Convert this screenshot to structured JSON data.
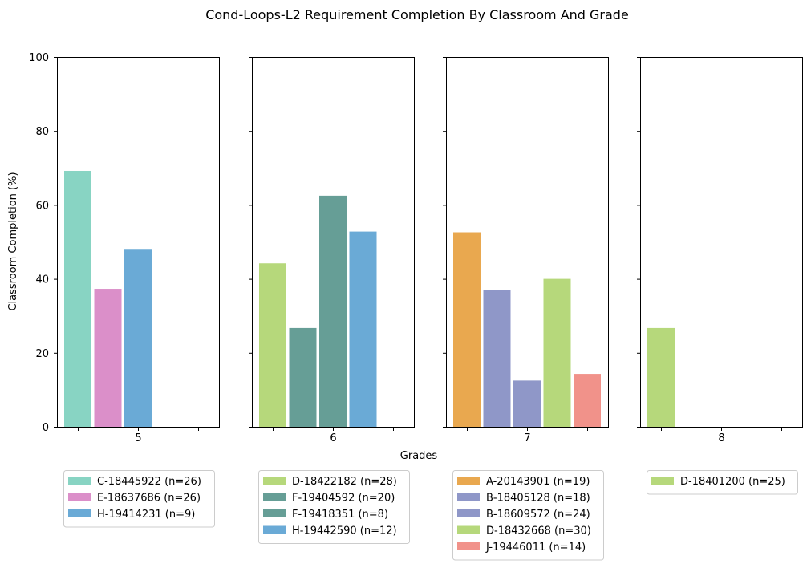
{
  "chart_data": {
    "type": "bar",
    "title": "Cond-Loops-L2 Requirement Completion By Classroom And Grade",
    "xlabel": "Grades",
    "ylabel": "Classroom Completion (%)",
    "ylim": [
      0,
      100
    ],
    "yticks": [
      "0",
      "20",
      "40",
      "60",
      "80",
      "100"
    ],
    "grid": false,
    "shared_y": true,
    "panels": [
      {
        "grade": "5",
        "bars": [
          {
            "label": "C-18445922 (n=26)",
            "value": 69.2,
            "color": "#88d4c3"
          },
          {
            "label": "E-18637686 (n=26)",
            "value": 37.3,
            "color": "#db8fc9"
          },
          {
            "label": "H-19414231 (n=9)",
            "value": 48.1,
            "color": "#6aaad6"
          }
        ]
      },
      {
        "grade": "6",
        "bars": [
          {
            "label": "D-18422182 (n=28)",
            "value": 44.2,
            "color": "#b6d87b"
          },
          {
            "label": "F-19404592 (n=20)",
            "value": 26.7,
            "color": "#669e96"
          },
          {
            "label": "F-19418351 (n=8)",
            "value": 62.5,
            "color": "#669e96"
          },
          {
            "label": "H-19442590 (n=12)",
            "value": 52.8,
            "color": "#6aaad6"
          }
        ]
      },
      {
        "grade": "7",
        "bars": [
          {
            "label": "A-20143901 (n=19)",
            "value": 52.6,
            "color": "#e9a84f"
          },
          {
            "label": "B-18405128 (n=18)",
            "value": 37.0,
            "color": "#8f97c8"
          },
          {
            "label": "B-18609572 (n=24)",
            "value": 12.5,
            "color": "#8f97c8"
          },
          {
            "label": "D-18432668 (n=30)",
            "value": 40.0,
            "color": "#b6d87b"
          },
          {
            "label": "J-19446011 (n=14)",
            "value": 14.3,
            "color": "#f1928a"
          }
        ]
      },
      {
        "grade": "8",
        "bars": [
          {
            "label": "D-18401200 (n=25)",
            "value": 26.7,
            "color": "#b6d87b"
          }
        ]
      }
    ]
  }
}
